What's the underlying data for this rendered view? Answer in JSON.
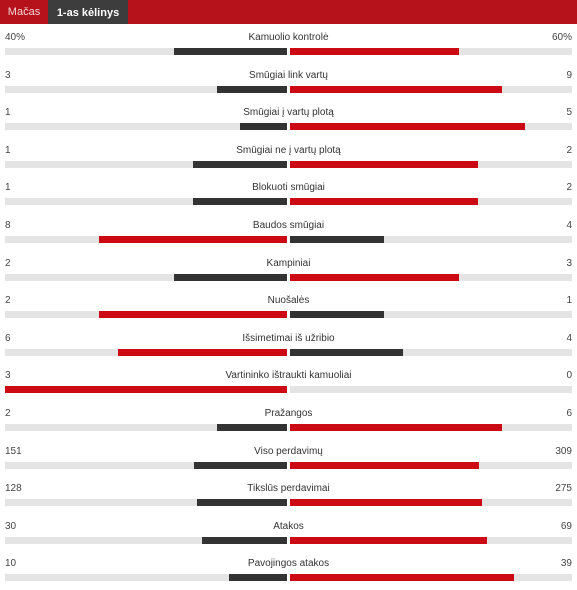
{
  "tabs": [
    {
      "label": "Mačas",
      "active": false
    },
    {
      "label": "1-as kėlinys",
      "active": true
    }
  ],
  "colors": {
    "brand_red": "#b5121b",
    "bar_red": "#cc0a14",
    "bar_dark": "#333333",
    "track": "#e4e4e4",
    "active_tab": "#3d3d3d"
  },
  "stats": [
    {
      "label": "Kamuolio kontrolė",
      "left": "40%",
      "right": "60%",
      "left_share": 0.4,
      "right_share": 0.6
    },
    {
      "label": "Smūgiai link vartų",
      "left": "3",
      "right": "9",
      "left_share": 0.25,
      "right_share": 0.75
    },
    {
      "label": "Smūgiai į vartų plotą",
      "left": "1",
      "right": "5",
      "left_share": 0.1667,
      "right_share": 0.8333
    },
    {
      "label": "Smūgiai ne į vartų plotą",
      "left": "1",
      "right": "2",
      "left_share": 0.3333,
      "right_share": 0.6667
    },
    {
      "label": "Blokuoti smūgiai",
      "left": "1",
      "right": "2",
      "left_share": 0.3333,
      "right_share": 0.6667
    },
    {
      "label": "Baudos smūgiai",
      "left": "8",
      "right": "4",
      "left_share": 0.6667,
      "right_share": 0.3333
    },
    {
      "label": "Kampiniai",
      "left": "2",
      "right": "3",
      "left_share": 0.4,
      "right_share": 0.6
    },
    {
      "label": "Nuošalės",
      "left": "2",
      "right": "1",
      "left_share": 0.6667,
      "right_share": 0.3333
    },
    {
      "label": "Išsimetimai iš užribio",
      "left": "6",
      "right": "4",
      "left_share": 0.6,
      "right_share": 0.4
    },
    {
      "label": "Vartininko ištraukti kamuoliai",
      "left": "3",
      "right": "0",
      "left_share": 1.0,
      "right_share": 0.0
    },
    {
      "label": "Pražangos",
      "left": "2",
      "right": "6",
      "left_share": 0.25,
      "right_share": 0.75
    },
    {
      "label": "Viso perdavimų",
      "left": "151",
      "right": "309",
      "left_share": 0.3283,
      "right_share": 0.6717
    },
    {
      "label": "Tikslūs perdavimai",
      "left": "128",
      "right": "275",
      "left_share": 0.3176,
      "right_share": 0.6824
    },
    {
      "label": "Atakos",
      "left": "30",
      "right": "69",
      "left_share": 0.303,
      "right_share": 0.697
    },
    {
      "label": "Pavojingos atakos",
      "left": "10",
      "right": "39",
      "left_share": 0.2041,
      "right_share": 0.7959
    }
  ]
}
